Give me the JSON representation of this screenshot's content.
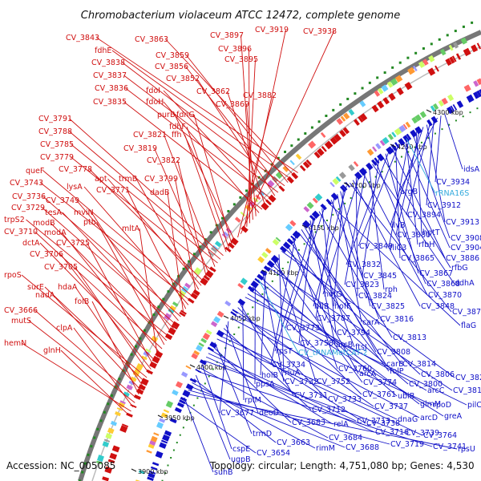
{
  "title": "Chromobacterium violaceum ATCC 12472, complete genome",
  "accession": "Accession: NC_005085",
  "summary": "Topology: circular; Length: 4,751,080 bp; Genes: 4,530",
  "colors": {
    "forward": "#d01010",
    "reverse": "#1010c8",
    "rna": "#33aadd",
    "backbone": "#888888"
  },
  "ruler": [
    "4300 kbp",
    "4250 kbp",
    "4200 kbp",
    "4150 kbp",
    "4100 kbp",
    "4050 kbp",
    "4000 kbp",
    "3950 kbp",
    "3900 kbp"
  ],
  "forward_labels": [
    "CV_3843",
    "CV_3863",
    "fdhE",
    "CV_3859",
    "CV_3838",
    "CV_3856",
    "CV_3837",
    "CV_3852",
    "CV_3836",
    "fdoI",
    "CV_3862",
    "CV_3835",
    "fdoH",
    "CV_3869",
    "CV_3897",
    "CV_3896",
    "CV_3895",
    "CV_3919",
    "CV_3938",
    "CV_3882",
    "purB",
    "fdnG",
    "fdhF",
    "ffh",
    "CV_3791",
    "CV_3788",
    "CV_3785",
    "CV_3821",
    "CV_3779",
    "CV_3819",
    "CV_3822",
    "CV_3778",
    "apt",
    "trmB",
    "CV_3799",
    "queF",
    "CV_3743",
    "lysA",
    "CV_3771",
    "dadB",
    "CV_3736",
    "CV_3749",
    "CV_3729",
    "tesA",
    "mviN",
    "trpS2",
    "modB",
    "ptb",
    "CV_3710",
    "modA",
    "mltA",
    "dctA",
    "CV_3725",
    "CV_3706",
    "CV_3705",
    "rpoS",
    "surE",
    "hdaA",
    "nadA",
    "folB",
    "CV_3666",
    "mutS",
    "clpA",
    "hemN",
    "glnH"
  ],
  "reverse_labels": [
    "idsA",
    "CV_3934",
    "argB",
    "CV_3912",
    "CV_3894",
    "CV_3913",
    "ilvB",
    "CV_3880",
    "hptT",
    "CV_3908",
    "fliC3",
    "rfbH",
    "CV_3904",
    "CV_3849",
    "CV_3865",
    "CV_3886",
    "CV_3832",
    "CV_3867",
    "rfbG",
    "CV_3845",
    "CV_3868",
    "ddhA",
    "rph",
    "CV_3823",
    "CV_3870",
    "hofG",
    "CV_3824",
    "CV_3848",
    "CV_3871",
    "hflB",
    "hofF",
    "CV_3825",
    "carA",
    "CV_3787",
    "CV_3816",
    "flaG",
    "CV_3773",
    "CV_3794",
    "CV_3813",
    "rpsT",
    "CV_3758",
    "arcB",
    "ftsJ",
    "CV_3808",
    "carB",
    "CV_3814",
    "CV_3734",
    "CV_3760",
    "folP",
    "arcA",
    "CV_3806",
    "CV_3829",
    "rluA",
    "CV_3752",
    "CV_3774",
    "CV_3800",
    "CV_3818",
    "holB",
    "CV_3732",
    "ubiB",
    "glmM",
    "ppsA",
    "CV_3761",
    "arcC",
    "greA",
    "pilC",
    "rplM",
    "CV_3711",
    "CV_3733",
    "CV_3737",
    "rpoD",
    "arcD",
    "CV_3677",
    "deoD",
    "CV_3712",
    "CV_3738",
    "dnaG",
    "CV_3764",
    "trmD",
    "CV_3683",
    "relA",
    "CV_3713",
    "CV_3716",
    "CV_3739",
    "cspE",
    "CV_3684",
    "CV_3741",
    "ugpB",
    "CV_3663",
    "rimM",
    "CV_3688",
    "CV_3719",
    "rpsU",
    "suhB",
    "CV_3654"
  ],
  "rna_labels": [
    "rRNA16S",
    "CV_tRNAMetCAT-2"
  ]
}
